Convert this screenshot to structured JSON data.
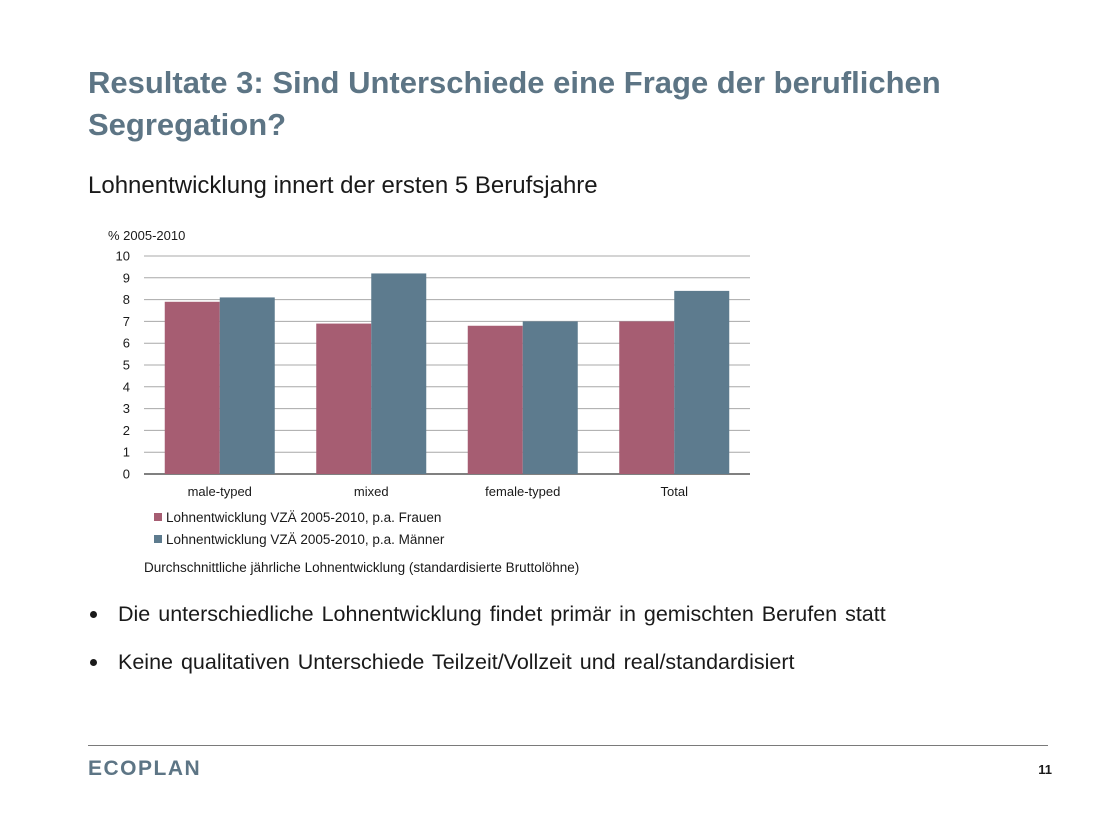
{
  "slide": {
    "title": "Resultate 3: Sind Unterschiede eine Frage der beruflichen Segregation?",
    "subtitle": "Lohnentwicklung innert der ersten 5 Berufsjahre",
    "bullets": [
      "Die unterschiedliche Lohnentwicklung findet primär in gemischten Berufen statt",
      "Keine qualitativen Unterschiede Teilzeit/Vollzeit und real/standardisiert"
    ],
    "brand": "ECOPLAN",
    "page_number": "11"
  },
  "chart_data": {
    "type": "bar",
    "unit_label": "% 2005-2010",
    "categories": [
      "male-typed",
      "mixed",
      "female-typed",
      "Total"
    ],
    "series": [
      {
        "name": "Lohnentwicklung VZÄ 2005-2010, p.a. Frauen",
        "values": [
          7.9,
          6.9,
          6.8,
          7.0
        ],
        "color": "#a65d72"
      },
      {
        "name": "Lohnentwicklung VZÄ 2005-2010, p.a. Männer",
        "values": [
          8.1,
          9.2,
          7.0,
          8.4
        ],
        "color": "#5d7b8e"
      }
    ],
    "ylim": [
      0,
      10
    ],
    "yticks": [
      "0",
      "1",
      "2",
      "3",
      "4",
      "5",
      "6",
      "7",
      "8",
      "9",
      "10"
    ],
    "grid": true,
    "legend_position": "bottom",
    "caption": "Durchschnittliche jährliche Lohnentwicklung (standardisierte Bruttolöhne)"
  }
}
